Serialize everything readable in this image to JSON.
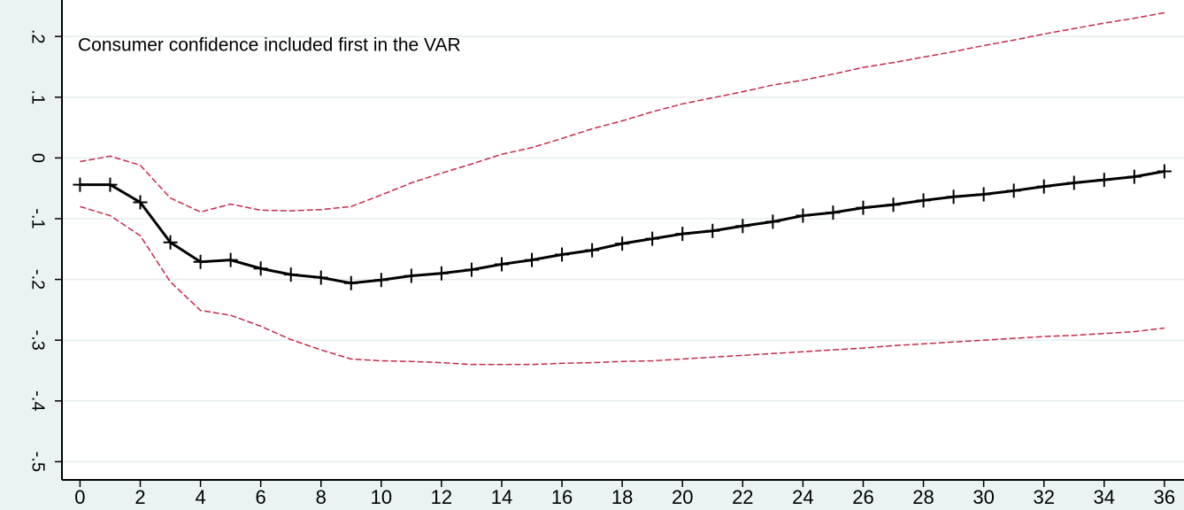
{
  "chart_data": {
    "type": "line",
    "annotation": "Consumer confidence included first in the VAR",
    "x": [
      0,
      1,
      2,
      3,
      4,
      5,
      6,
      7,
      8,
      9,
      10,
      11,
      12,
      13,
      14,
      15,
      16,
      17,
      18,
      19,
      20,
      21,
      22,
      23,
      24,
      25,
      26,
      27,
      28,
      29,
      30,
      31,
      32,
      33,
      34,
      35,
      36
    ],
    "series": [
      {
        "color": "#c8284a",
        "dash": true,
        "markers": false,
        "values": [
          -0.006,
          0.003,
          -0.012,
          -0.066,
          -0.089,
          -0.076,
          -0.086,
          -0.087,
          -0.085,
          -0.08,
          -0.061,
          -0.041,
          -0.025,
          -0.01,
          0.006,
          0.017,
          0.032,
          0.048,
          0.061,
          0.076,
          0.089,
          0.099,
          0.109,
          0.12,
          0.128,
          0.138,
          0.149,
          0.157,
          0.166,
          0.175,
          0.185,
          0.194,
          0.204,
          0.213,
          0.222,
          0.23,
          0.239
        ]
      },
      {
        "color": "#000000",
        "dash": false,
        "markers": true,
        "values": [
          -0.044,
          -0.044,
          -0.073,
          -0.139,
          -0.171,
          -0.168,
          -0.182,
          -0.192,
          -0.197,
          -0.206,
          -0.201,
          -0.194,
          -0.19,
          -0.184,
          -0.175,
          -0.168,
          -0.159,
          -0.152,
          -0.141,
          -0.133,
          -0.125,
          -0.12,
          -0.112,
          -0.105,
          -0.095,
          -0.09,
          -0.082,
          -0.077,
          -0.07,
          -0.064,
          -0.06,
          -0.054,
          -0.047,
          -0.041,
          -0.036,
          -0.031,
          -0.022
        ]
      },
      {
        "color": "#c8284a",
        "dash": true,
        "markers": false,
        "values": [
          -0.08,
          -0.095,
          -0.128,
          -0.204,
          -0.251,
          -0.259,
          -0.277,
          -0.299,
          -0.316,
          -0.331,
          -0.334,
          -0.335,
          -0.337,
          -0.34,
          -0.34,
          -0.34,
          -0.338,
          -0.337,
          -0.335,
          -0.334,
          -0.331,
          -0.328,
          -0.325,
          -0.322,
          -0.319,
          -0.316,
          -0.313,
          -0.309,
          -0.306,
          -0.303,
          -0.3,
          -0.297,
          -0.294,
          -0.292,
          -0.289,
          -0.286,
          -0.28
        ]
      }
    ],
    "xlim": [
      -0.6,
      36.65
    ],
    "ylim": [
      -0.53,
      0.26
    ],
    "xticks": [
      0,
      2,
      4,
      6,
      8,
      10,
      12,
      14,
      16,
      18,
      20,
      22,
      24,
      26,
      28,
      30,
      32,
      34,
      36
    ],
    "yticks": [
      {
        "value": 0.2,
        "label": ".2"
      },
      {
        "value": 0.1,
        "label": ".1"
      },
      0,
      {
        "value": -0.1,
        "label": "-.1"
      },
      {
        "value": -0.2,
        "label": "-.2"
      },
      {
        "value": -0.3,
        "label": "-.3"
      },
      {
        "value": -0.4,
        "label": "-.4"
      },
      {
        "value": -0.5,
        "label": "-.5"
      }
    ],
    "grid": true
  }
}
